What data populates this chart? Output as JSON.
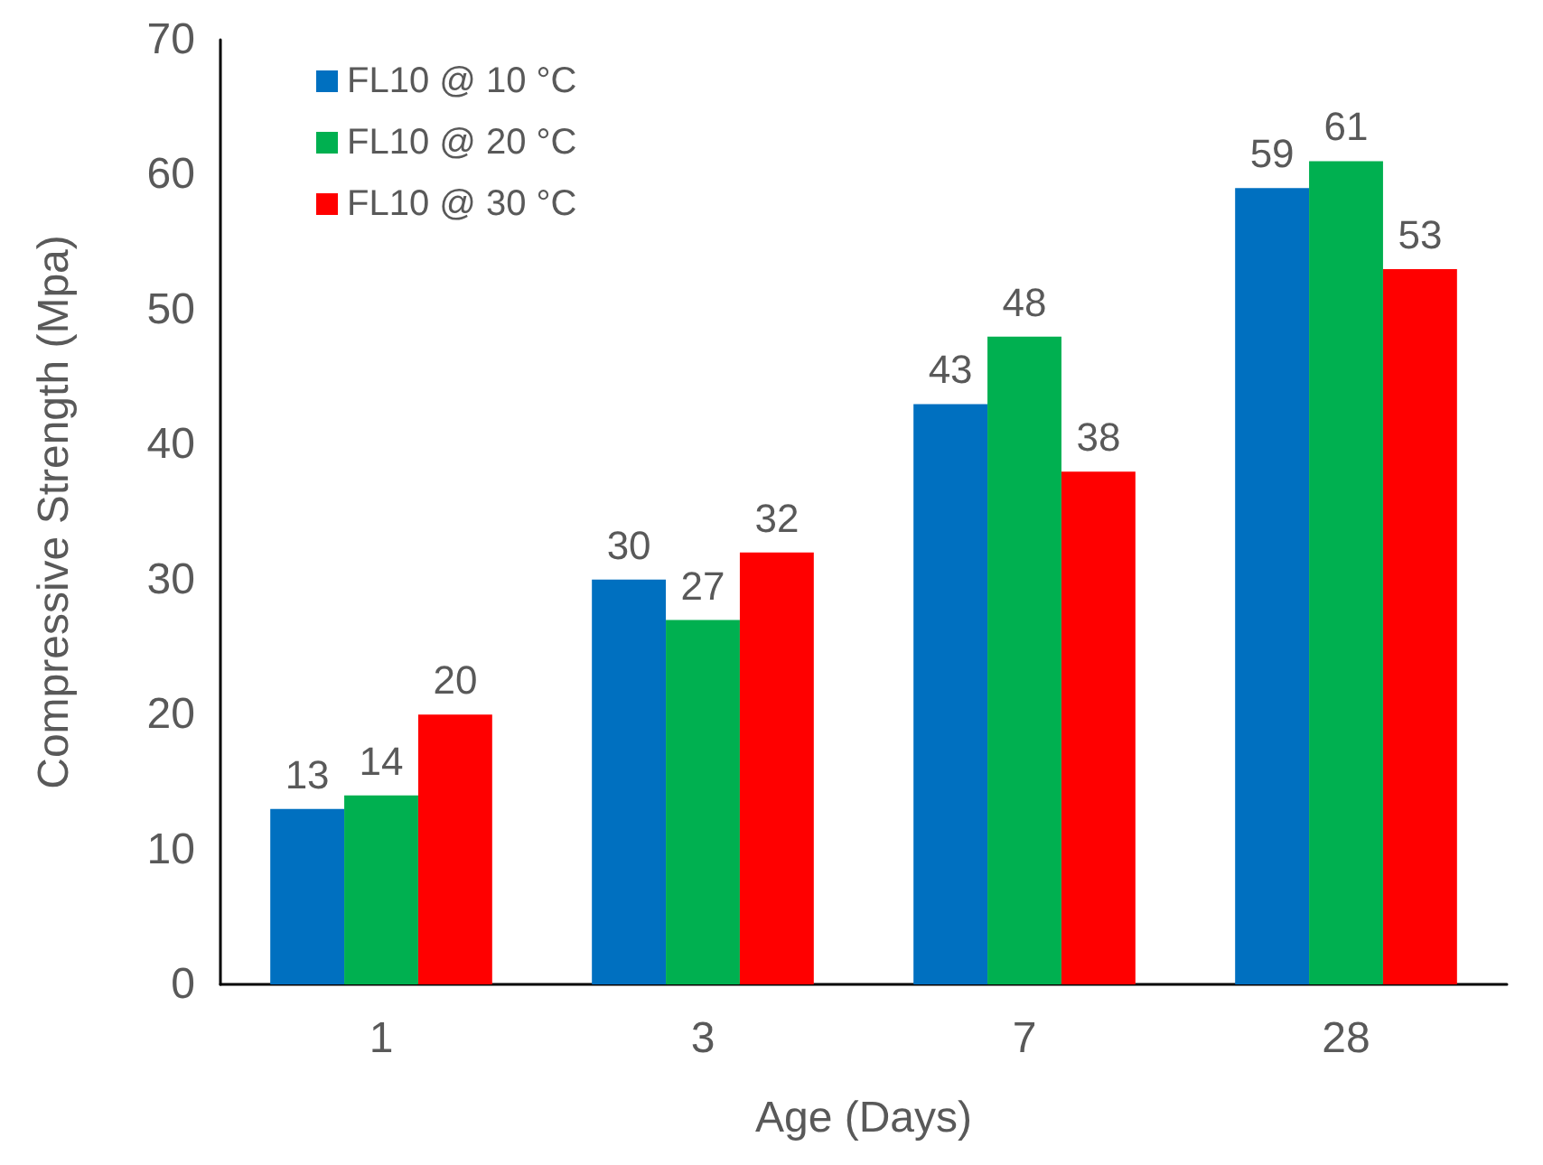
{
  "chart_data": {
    "type": "bar",
    "xlabel": "Age (Days)",
    "ylabel": "Compressive Strength (Mpa)",
    "categories": [
      "1",
      "3",
      "7",
      "28"
    ],
    "series": [
      {
        "name": "FL10 @ 10 °C",
        "color": "#0070c0",
        "values": [
          13,
          30,
          43,
          59
        ]
      },
      {
        "name": "FL10 @ 20 °C",
        "color": "#00b050",
        "values": [
          14,
          27,
          48,
          61
        ]
      },
      {
        "name": "FL10 @ 30 °C",
        "color": "#ff0000",
        "values": [
          20,
          32,
          38,
          53
        ]
      }
    ],
    "ylim": [
      0,
      70
    ],
    "yticks": [
      0,
      10,
      20,
      30,
      40,
      50,
      60,
      70
    ],
    "grid": false,
    "legend": "top left",
    "data_labels": true
  }
}
